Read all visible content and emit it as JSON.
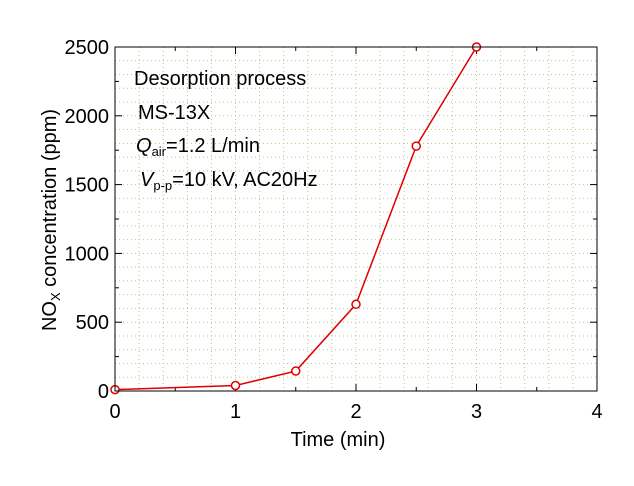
{
  "chart_data": {
    "type": "line",
    "title": "",
    "xlabel": "Time (min)",
    "ylabel": {
      "main": "NO",
      "sub": "X",
      "rest": " concentration  (ppm)"
    },
    "xlim": [
      0,
      4
    ],
    "ylim": [
      0,
      2500
    ],
    "xticks": [
      0,
      1,
      2,
      3,
      4
    ],
    "yticks": [
      0,
      500,
      1000,
      1500,
      2000,
      2500
    ],
    "grid": true,
    "series": [
      {
        "x": [
          0,
          1,
          1.5,
          2,
          2.5,
          3
        ],
        "y": [
          10,
          40,
          145,
          630,
          1780,
          2500
        ],
        "color": "#e00000",
        "marker": "open-circle"
      }
    ],
    "annotations": {
      "line1": "Desorption process",
      "line2": "MS-13X",
      "line3": {
        "symbol": "Q",
        "sub": "air",
        "rest": "=1.2 L/min"
      },
      "line4": {
        "symbol": "V",
        "sub": "p-p",
        "rest": "=10 kV, AC20Hz"
      }
    }
  }
}
